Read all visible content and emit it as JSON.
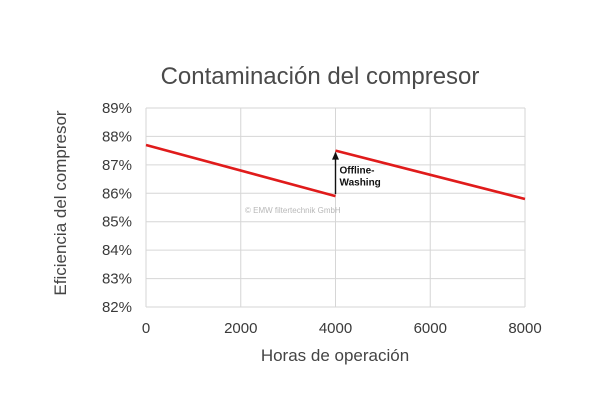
{
  "chart_data": {
    "type": "line",
    "title": "Contaminación del compresor",
    "xlabel": "Horas de operación",
    "ylabel": "Eficiencia del compresor",
    "xlim": [
      0,
      8000
    ],
    "ylim": [
      82,
      89
    ],
    "x_ticks": [
      0,
      2000,
      4000,
      6000,
      8000
    ],
    "x_tick_labels": [
      "0",
      "2000",
      "4000",
      "6000",
      "8000"
    ],
    "y_ticks": [
      82,
      83,
      84,
      85,
      86,
      87,
      88,
      89
    ],
    "y_tick_labels": [
      "82%",
      "83%",
      "84%",
      "85%",
      "86%",
      "87%",
      "88%",
      "89%"
    ],
    "grid": true,
    "series": [
      {
        "color": "#e01b1b",
        "segments": [
          [
            {
              "x": 0,
              "y": 87.7
            },
            {
              "x": 4000,
              "y": 85.9
            }
          ],
          [
            {
              "x": 4000,
              "y": 87.5
            },
            {
              "x": 8000,
              "y": 85.8
            }
          ]
        ]
      }
    ],
    "annotations": [
      {
        "type": "arrow",
        "x": 4000,
        "y_from": 85.9,
        "y_to": 87.5,
        "label_lines": [
          "Offline-",
          "Washing"
        ]
      }
    ],
    "watermark": "© EMW filtertechnik GmbH"
  }
}
